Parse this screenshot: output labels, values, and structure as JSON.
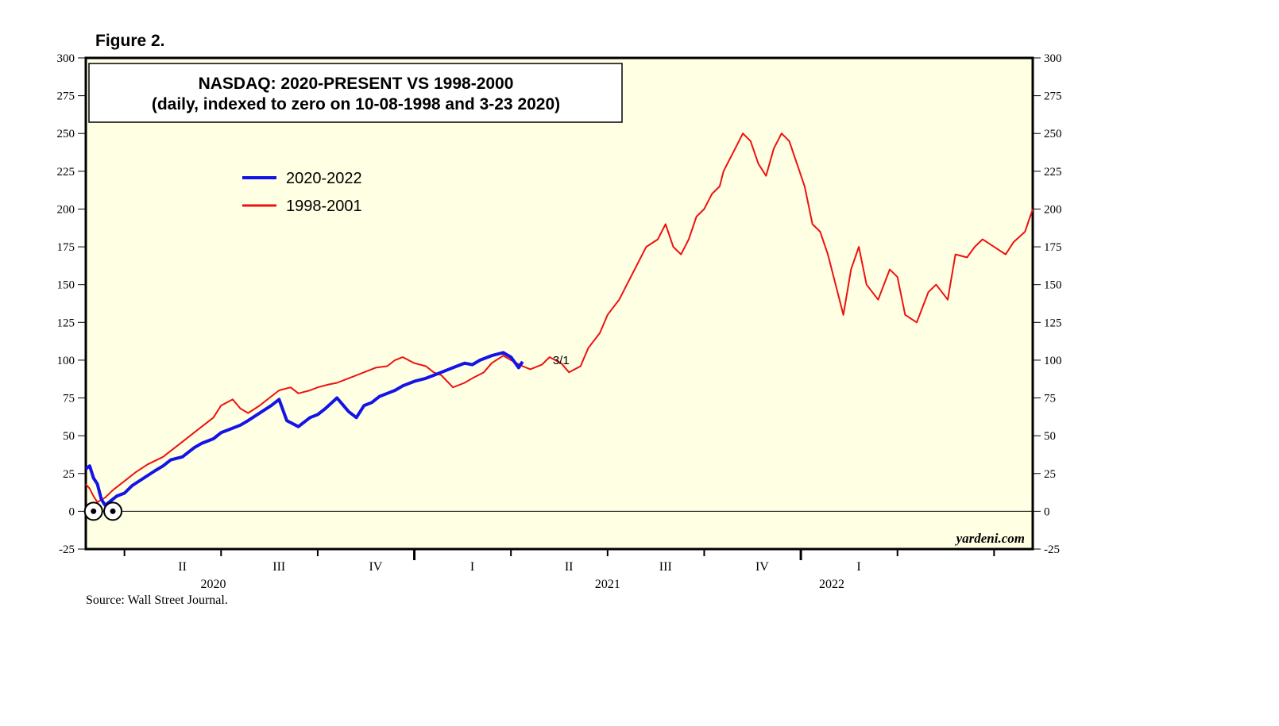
{
  "figure_label": "Figure 2.",
  "source": "Source: Wall Street Journal.",
  "watermark": "yardeni.com",
  "colors": {
    "background": "#ffffe3",
    "series_2020": "#1414e6",
    "series_1998": "#ee1111"
  },
  "chart_data": {
    "type": "line",
    "title": "NASDAQ: 2020-PRESENT VS 1998-2000",
    "subtitle": "(daily, indexed to zero on 10-08-1998 and 3-23 2020)",
    "ylim": [
      -25,
      300
    ],
    "yticks": [
      -25,
      0,
      25,
      50,
      75,
      100,
      125,
      150,
      175,
      200,
      225,
      250,
      275,
      300
    ],
    "xlim": [
      0,
      2.45
    ],
    "x_note": "years from the index date",
    "grid": false,
    "reference_line": 0,
    "legend_position": "top-left",
    "quarter_labels": [
      {
        "label": "II",
        "x": 0.25
      },
      {
        "label": "III",
        "x": 0.5
      },
      {
        "label": "IV",
        "x": 0.75
      },
      {
        "label": "I",
        "x": 1.0
      },
      {
        "label": "II",
        "x": 1.25
      },
      {
        "label": "III",
        "x": 1.5
      },
      {
        "label": "IV",
        "x": 1.75
      },
      {
        "label": "I",
        "x": 2.0
      }
    ],
    "minor_ticks": [
      0.1,
      0.35,
      0.6,
      0.85,
      1.1,
      1.35,
      1.6,
      1.85,
      2.1,
      2.35
    ],
    "major_ticks": [
      0.85,
      1.85
    ],
    "year_labels": [
      {
        "label": "2020",
        "x": 0.33
      },
      {
        "label": "2021",
        "x": 1.35
      },
      {
        "label": "2022",
        "x": 1.93
      }
    ],
    "start_markers": [
      0.02,
      0.07
    ],
    "annotation": {
      "text": "3/1",
      "x": 1.2,
      "y": 100
    },
    "series": [
      {
        "name": "2020-2022",
        "color": "#1414e6",
        "x": [
          0.0,
          0.01,
          0.02,
          0.03,
          0.04,
          0.05,
          0.06,
          0.08,
          0.1,
          0.12,
          0.15,
          0.18,
          0.2,
          0.22,
          0.25,
          0.28,
          0.3,
          0.33,
          0.35,
          0.38,
          0.4,
          0.42,
          0.45,
          0.48,
          0.5,
          0.52,
          0.55,
          0.58,
          0.6,
          0.62,
          0.65,
          0.68,
          0.7,
          0.72,
          0.74,
          0.76,
          0.78,
          0.8,
          0.82,
          0.85,
          0.88,
          0.9,
          0.92,
          0.95,
          0.98,
          1.0,
          1.02,
          1.05,
          1.08,
          1.1,
          1.12,
          1.13
        ],
        "y": [
          28,
          30,
          22,
          18,
          8,
          4,
          6,
          10,
          12,
          17,
          22,
          27,
          30,
          34,
          36,
          42,
          45,
          48,
          52,
          55,
          57,
          60,
          65,
          70,
          74,
          60,
          56,
          62,
          64,
          68,
          75,
          66,
          62,
          70,
          72,
          76,
          78,
          80,
          83,
          86,
          88,
          90,
          92,
          95,
          98,
          97,
          100,
          103,
          105,
          102,
          95,
          99
        ]
      },
      {
        "name": "1998-2001",
        "color": "#ee1111",
        "x": [
          0.0,
          0.01,
          0.02,
          0.03,
          0.05,
          0.07,
          0.1,
          0.13,
          0.16,
          0.2,
          0.22,
          0.25,
          0.28,
          0.3,
          0.33,
          0.35,
          0.38,
          0.4,
          0.42,
          0.45,
          0.48,
          0.5,
          0.53,
          0.55,
          0.58,
          0.6,
          0.63,
          0.65,
          0.68,
          0.7,
          0.72,
          0.75,
          0.78,
          0.8,
          0.82,
          0.85,
          0.88,
          0.9,
          0.92,
          0.95,
          0.98,
          1.0,
          1.03,
          1.05,
          1.08,
          1.1,
          1.13,
          1.15,
          1.18,
          1.2,
          1.23,
          1.25,
          1.28,
          1.3,
          1.33,
          1.35,
          1.38,
          1.4,
          1.42,
          1.45,
          1.48,
          1.5,
          1.52,
          1.54,
          1.56,
          1.58,
          1.6,
          1.62,
          1.64,
          1.65,
          1.66,
          1.68,
          1.7,
          1.72,
          1.74,
          1.76,
          1.78,
          1.8,
          1.82,
          1.84,
          1.86,
          1.88,
          1.9,
          1.92,
          1.94,
          1.96,
          1.98,
          2.0,
          2.02,
          2.05,
          2.08,
          2.1,
          2.12,
          2.15,
          2.18,
          2.2,
          2.23,
          2.25,
          2.28,
          2.3,
          2.32,
          2.35,
          2.38,
          2.4,
          2.43,
          2.45
        ],
        "y": [
          18,
          15,
          10,
          6,
          9,
          14,
          20,
          26,
          31,
          36,
          40,
          46,
          52,
          56,
          62,
          70,
          74,
          68,
          65,
          70,
          76,
          80,
          82,
          78,
          80,
          82,
          84,
          85,
          88,
          90,
          92,
          95,
          96,
          100,
          102,
          98,
          96,
          92,
          90,
          82,
          85,
          88,
          92,
          98,
          103,
          100,
          96,
          94,
          97,
          102,
          98,
          92,
          96,
          108,
          118,
          130,
          140,
          150,
          160,
          175,
          180,
          190,
          175,
          170,
          180,
          195,
          200,
          210,
          215,
          225,
          230,
          240,
          250,
          245,
          230,
          222,
          240,
          250,
          245,
          230,
          215,
          190,
          185,
          170,
          150,
          130,
          160,
          175,
          150,
          140,
          160,
          155,
          130,
          125,
          145,
          150,
          140,
          170,
          168,
          175,
          180,
          175,
          170,
          178,
          185,
          200
        ]
      }
    ]
  }
}
